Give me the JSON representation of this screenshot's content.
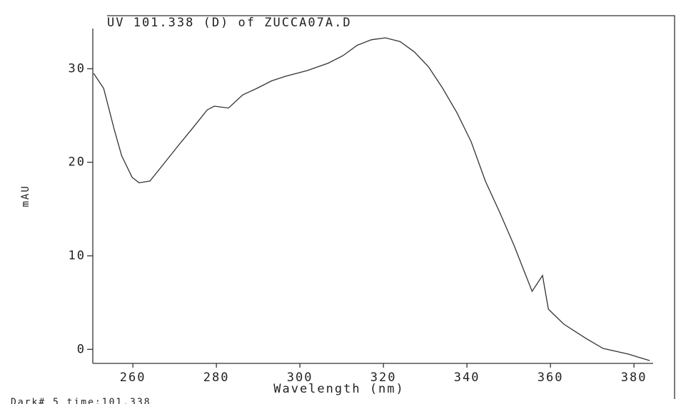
{
  "chart_data": {
    "type": "line",
    "title": "UV 101.338 (D) of ZUCCA07A.D",
    "xlabel": "Wavelength (nm)",
    "ylabel": "mAU",
    "footer": "Dark#  5  time:101.338",
    "x": [
      250.6,
      253,
      255.6,
      257.3,
      259.8,
      261.5,
      264.1,
      267.5,
      270.9,
      274.4,
      277.8,
      279.5,
      282.9,
      286.3,
      289.7,
      293.2,
      296.6,
      301.7,
      306.8,
      310.3,
      313.7,
      317.1,
      320.5,
      324.0,
      327.4,
      330.8,
      334.2,
      337.6,
      341.0,
      344.4,
      347.9,
      351.3,
      355.6,
      358.1,
      359.5,
      363.2,
      368.4,
      372.6,
      378.6,
      383.8
    ],
    "series": [
      {
        "name": "UV 101.338",
        "color": "#333333",
        "values": [
          29.5,
          27.9,
          23.4,
          20.7,
          18.4,
          17.8,
          18.0,
          19.9,
          21.8,
          23.7,
          25.6,
          26.0,
          25.8,
          27.2,
          27.9,
          28.7,
          29.2,
          29.8,
          30.6,
          31.4,
          32.5,
          33.1,
          33.3,
          32.9,
          31.8,
          30.2,
          27.9,
          25.3,
          22.2,
          18.0,
          14.6,
          11.1,
          6.2,
          7.9,
          4.3,
          2.7,
          1.2,
          0.1,
          -0.5,
          -1.2
        ]
      }
    ],
    "xlim": [
      250.4,
      384.6
    ],
    "xticks": [
      260,
      280,
      300,
      320,
      340,
      360,
      380
    ],
    "ylim": [
      -1.5,
      34.3
    ],
    "yticks": [
      0,
      10,
      20,
      30
    ],
    "grid": false
  }
}
